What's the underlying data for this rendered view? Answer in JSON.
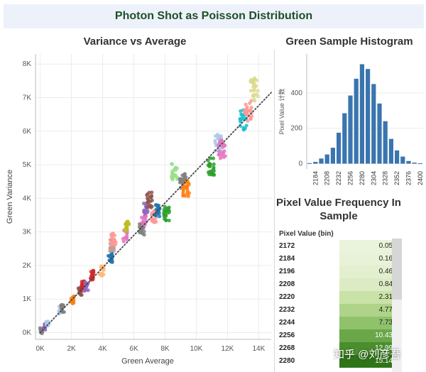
{
  "banner": {
    "title": "Photon Shot as Poisson Distribution"
  },
  "scatter": {
    "title": "Variance vs Average",
    "chart_data": {
      "type": "scatter",
      "title": "Variance vs Average",
      "xlabel": "Green Average",
      "ylabel": "Green Variance",
      "xlim": [
        -300,
        14800
      ],
      "ylim": [
        -200,
        8300
      ],
      "x_ticks": [
        "0K",
        "2K",
        "4K",
        "6K",
        "8K",
        "10K",
        "12K",
        "14K"
      ],
      "y_ticks": [
        "0K",
        "1K",
        "2K",
        "3K",
        "4K",
        "5K",
        "6K",
        "7K",
        "8K"
      ],
      "x_tick_values": [
        0,
        2000,
        4000,
        6000,
        8000,
        10000,
        12000,
        14000
      ],
      "y_tick_values": [
        0,
        1000,
        2000,
        3000,
        4000,
        5000,
        6000,
        7000,
        8000
      ],
      "trend_line": {
        "style": "dotted",
        "x": [
          0,
          14800
        ],
        "y": [
          0,
          7150
        ]
      },
      "clusters": [
        {
          "x": 80,
          "y": 60,
          "color": "#7f7f7f"
        },
        {
          "x": 250,
          "y": 170,
          "color": "#9467bd"
        },
        {
          "x": 450,
          "y": 260,
          "color": "#aec7e8"
        },
        {
          "x": 1300,
          "y": 680,
          "color": "#aec7e8"
        },
        {
          "x": 1450,
          "y": 720,
          "color": "#7f7f7f"
        },
        {
          "x": 2050,
          "y": 960,
          "color": "#ff7f0e"
        },
        {
          "x": 2550,
          "y": 1250,
          "color": "#8c564b"
        },
        {
          "x": 2750,
          "y": 1400,
          "color": "#d62728"
        },
        {
          "x": 2950,
          "y": 1380,
          "color": "#9467bd"
        },
        {
          "x": 3300,
          "y": 1700,
          "color": "#d62728"
        },
        {
          "x": 3950,
          "y": 1850,
          "color": "#ffbb78"
        },
        {
          "x": 4500,
          "y": 2250,
          "color": "#1f77b4"
        },
        {
          "x": 4600,
          "y": 2600,
          "color": "#c49c94"
        },
        {
          "x": 4700,
          "y": 2800,
          "color": "#ff9896"
        },
        {
          "x": 5450,
          "y": 2900,
          "color": "#e377c2"
        },
        {
          "x": 5550,
          "y": 3200,
          "color": "#bcbd22"
        },
        {
          "x": 6500,
          "y": 3100,
          "color": "#7f7f7f"
        },
        {
          "x": 6650,
          "y": 3400,
          "color": "#e377c2"
        },
        {
          "x": 6800,
          "y": 3700,
          "color": "#9467bd"
        },
        {
          "x": 7000,
          "y": 3950,
          "color": "#8c564b"
        },
        {
          "x": 7300,
          "y": 3500,
          "color": "#ff9896"
        },
        {
          "x": 7500,
          "y": 3600,
          "color": "#1f77b4"
        },
        {
          "x": 8100,
          "y": 3550,
          "color": "#2ca02c"
        },
        {
          "x": 8600,
          "y": 4800,
          "color": "#98df8a"
        },
        {
          "x": 9150,
          "y": 4550,
          "color": "#7f7f7f"
        },
        {
          "x": 9350,
          "y": 4300,
          "color": "#ff7f0e"
        },
        {
          "x": 10950,
          "y": 4950,
          "color": "#2ca02c"
        },
        {
          "x": 11400,
          "y": 5650,
          "color": "#aec7e8"
        },
        {
          "x": 11650,
          "y": 5450,
          "color": "#e377c2"
        },
        {
          "x": 13050,
          "y": 6350,
          "color": "#17becf"
        },
        {
          "x": 13300,
          "y": 6600,
          "color": "#ff9896"
        },
        {
          "x": 13700,
          "y": 7250,
          "color": "#dbdb8d"
        }
      ]
    }
  },
  "histogram": {
    "title": "Green Sample Histogram",
    "chart_data": {
      "type": "bar",
      "title": "Green Sample Histogram",
      "ylabel": "Pixel Value 计数",
      "ylim": [
        -30,
        620
      ],
      "y_ticks": [
        "0",
        "200",
        "400"
      ],
      "y_tick_values": [
        0,
        200,
        400
      ],
      "x_ticks": [
        "2184",
        "2208",
        "2232",
        "2256",
        "2280",
        "2304",
        "2328",
        "2352",
        "2376",
        "2400"
      ],
      "categories": [
        2172,
        2184,
        2196,
        2208,
        2220,
        2232,
        2244,
        2256,
        2268,
        2280,
        2292,
        2304,
        2316,
        2328,
        2340,
        2352,
        2364,
        2376,
        2388,
        2400
      ],
      "values": [
        3,
        10,
        29,
        52,
        90,
        175,
        285,
        385,
        480,
        562,
        535,
        450,
        340,
        240,
        140,
        75,
        40,
        15,
        6,
        2
      ],
      "color": "#3a75af"
    }
  },
  "frequency": {
    "title_line1": "Pixel Value Frequency In",
    "title_line2": "Sample",
    "column_header": "Pixel Value (bin)",
    "rows": [
      {
        "bin": "2172",
        "pct": "0.05%",
        "color": "#eaf3db"
      },
      {
        "bin": "2184",
        "pct": "0.16%",
        "color": "#e8f2d8"
      },
      {
        "bin": "2196",
        "pct": "0.46%",
        "color": "#e3efcf"
      },
      {
        "bin": "2208",
        "pct": "0.84%",
        "color": "#dcebc4"
      },
      {
        "bin": "2220",
        "pct": "2.31%",
        "color": "#c9e2a7"
      },
      {
        "bin": "2232",
        "pct": "4.77%",
        "color": "#afd388"
      },
      {
        "bin": "2244",
        "pct": "7.73%",
        "color": "#8fc26b"
      },
      {
        "bin": "2256",
        "pct": "10.43%",
        "color": "#6aa748"
      },
      {
        "bin": "2268",
        "pct": "12.99%",
        "color": "#4b8e2e"
      },
      {
        "bin": "2280",
        "pct": "15.14%",
        "color": "#2f7418"
      }
    ]
  },
  "watermark": "知乎 @刘彦吾"
}
